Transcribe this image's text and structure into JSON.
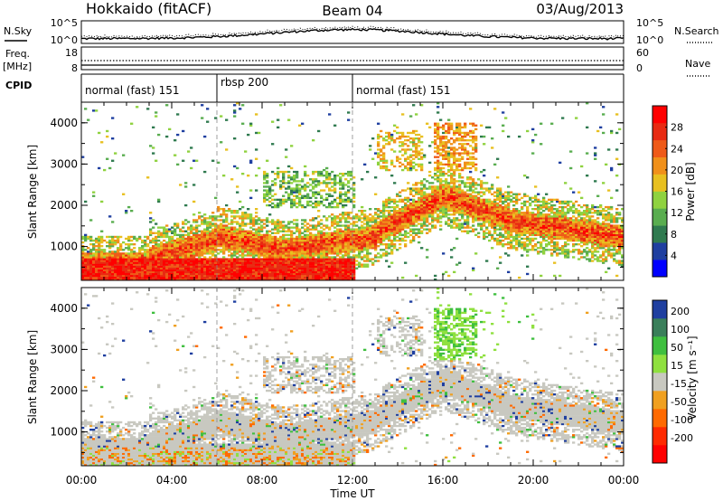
{
  "header": {
    "station": "Hokkaido (fitACF)",
    "beam": "Beam 04",
    "date": "03/Aug/2013"
  },
  "noise_panel": {
    "left_label": "N.Sky",
    "right_label": "N.Search",
    "left_ticks": [
      "10^5",
      "10^0"
    ],
    "right_ticks": [
      "10^5",
      "10^0"
    ]
  },
  "freq_panel": {
    "left_label_1": "Freq.",
    "left_label_2": "[MHz]",
    "right_label": "Nave",
    "left_ticks": [
      "18",
      "8"
    ],
    "right_ticks": [
      "60",
      "0"
    ]
  },
  "cpid": {
    "label": "CPID",
    "segments": [
      {
        "start_hour": 0,
        "end_hour": 6,
        "name": "normal (fast) 151"
      },
      {
        "start_hour": 6,
        "end_hour": 12,
        "name": "rbsp 200"
      },
      {
        "start_hour": 12,
        "end_hour": 24,
        "name": "normal (fast) 151"
      }
    ]
  },
  "chart_data": [
    {
      "type": "heatmap",
      "quantity": "power",
      "ylabel": "Slant Range [km]",
      "yticks": [
        "1000",
        "2000",
        "3000",
        "4000"
      ],
      "ylim": [
        180,
        4500
      ],
      "xlim": [
        0,
        24
      ],
      "colorbar": {
        "label": "Power [dB]",
        "ticks": [
          "4",
          "8",
          "12",
          "16",
          "20",
          "24",
          "28"
        ],
        "range": [
          0,
          32
        ],
        "colors": [
          "#0000ff",
          "#1f3fa0",
          "#2f7a4f",
          "#59ad4f",
          "#8fd23f",
          "#e8c020",
          "#f0901a",
          "#ef5a18",
          "#e82a12",
          "#ff0000"
        ]
      }
    },
    {
      "type": "heatmap",
      "quantity": "velocity",
      "ylabel": "Slant Range [km]",
      "yticks": [
        "1000",
        "2000",
        "3000",
        "4000"
      ],
      "ylim": [
        180,
        4500
      ],
      "xlim": [
        0,
        24
      ],
      "xticks": [
        "00:00",
        "04:00",
        "08:00",
        "12:00",
        "16:00",
        "20:00",
        "00:00"
      ],
      "xlabel": "Time UT",
      "colorbar": {
        "label": "Velocity [m s⁻¹]",
        "ticks": [
          "200",
          "100",
          "50",
          "15",
          "-15",
          "-50",
          "-100",
          "-200"
        ],
        "colors": [
          "#1f3fa0",
          "#3a7f5a",
          "#3fbf3f",
          "#8fe03f",
          "#c8c8c0",
          "#f0a020",
          "#ff6a00",
          "#ff2a00",
          "#ff0000"
        ]
      }
    }
  ]
}
